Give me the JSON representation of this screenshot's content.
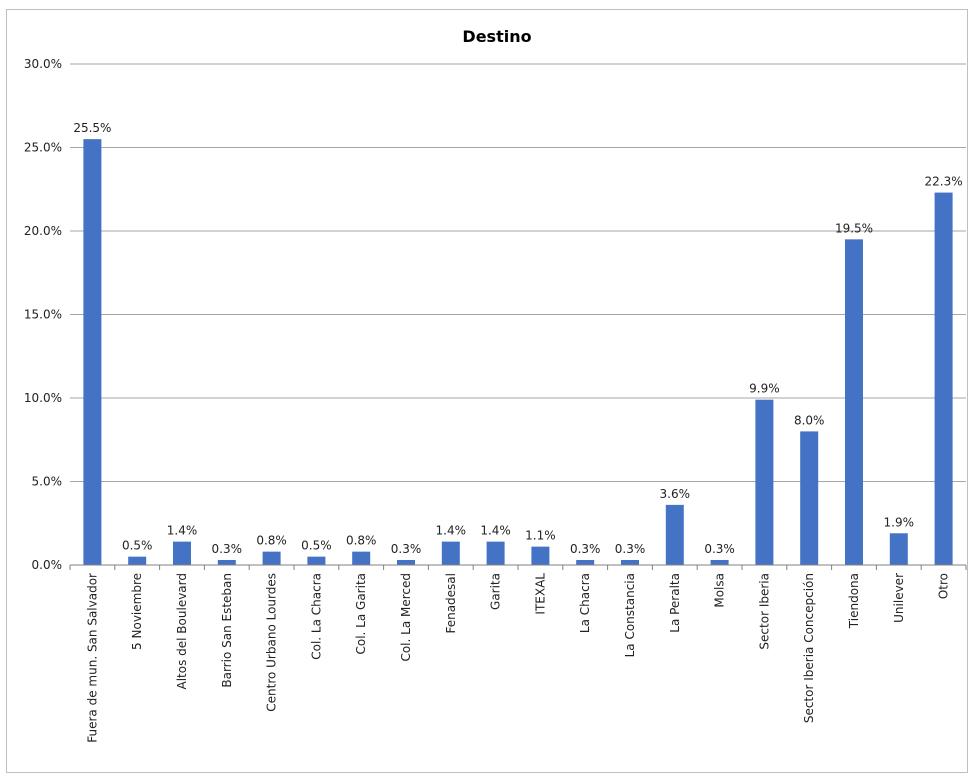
{
  "chart_data": {
    "type": "bar",
    "title": "Destino",
    "xlabel": "",
    "ylabel": "",
    "ylim": [
      0,
      30
    ],
    "yticks": [
      0,
      5,
      10,
      15,
      20,
      25,
      30
    ],
    "ytick_labels": [
      "0.0%",
      "5.0%",
      "10.0%",
      "15.0%",
      "20.0%",
      "25.0%",
      "30.0%"
    ],
    "grid": true,
    "bar_color": "#4472c4",
    "categories": [
      "Fuera de mun. San Salvador",
      "5 Noviembre",
      "Altos del Boulevard",
      "Barrio San Esteban",
      "Centro Urbano Lourdes",
      "Col. La Chacra",
      "Col. La Garita",
      "Col. La Merced",
      "Fenadesal",
      "Garita",
      "ITEXAL",
      "La Chacra",
      "La Constancia",
      "La Peralta",
      "Molsa",
      "Sector Iberia",
      "Sector Iberia Concepción",
      "Tiendona",
      "Unilever",
      "Otro"
    ],
    "values": [
      25.5,
      0.5,
      1.4,
      0.3,
      0.8,
      0.5,
      0.8,
      0.3,
      1.4,
      1.4,
      1.1,
      0.3,
      0.3,
      3.6,
      0.3,
      9.9,
      8.0,
      19.5,
      1.9,
      22.3
    ],
    "data_labels": [
      "25.5%",
      "0.5%",
      "1.4%",
      "0.3%",
      "0.8%",
      "0.5%",
      "0.8%",
      "0.3%",
      "1.4%",
      "1.4%",
      "1.1%",
      "0.3%",
      "0.3%",
      "3.6%",
      "0.3%",
      "9.9%",
      "8.0%",
      "19.5%",
      "1.9%",
      "22.3%"
    ]
  }
}
